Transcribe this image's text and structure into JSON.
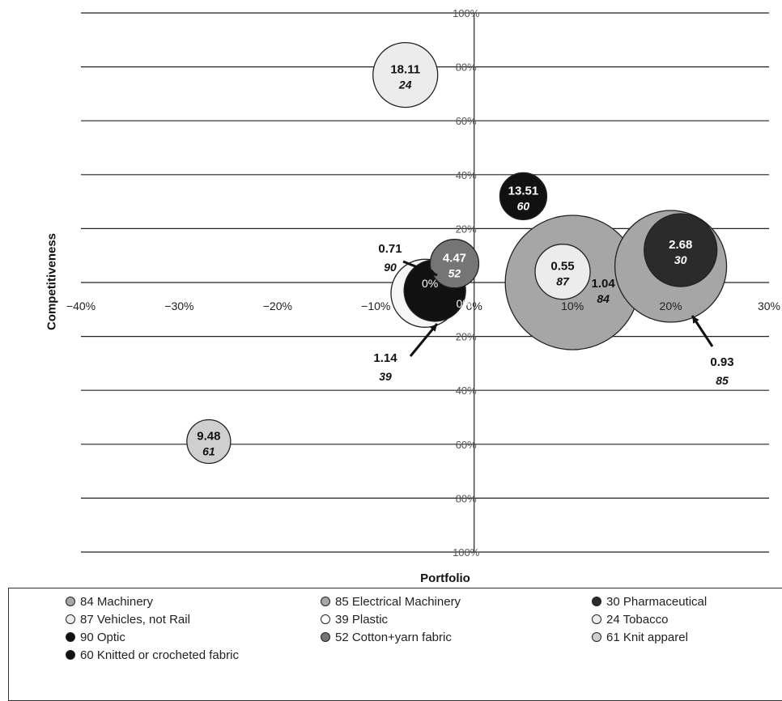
{
  "chart_data": {
    "type": "scatter",
    "subtype": "bubble",
    "xlabel": "Portfolio",
    "ylabel": "Competitiveness",
    "xlim": [
      -0.4,
      0.3
    ],
    "ylim": [
      -1.0,
      1.0
    ],
    "x_ticks": [
      {
        "value": -0.4,
        "label": "−40%"
      },
      {
        "value": -0.3,
        "label": "−30%"
      },
      {
        "value": -0.2,
        "label": "−20%"
      },
      {
        "value": -0.1,
        "label": "−10%"
      },
      {
        "value": 0.0,
        "label": "0%"
      },
      {
        "value": 0.1,
        "label": "10%"
      },
      {
        "value": 0.2,
        "label": "20%"
      },
      {
        "value": 0.3,
        "label": "30%"
      }
    ],
    "y_ticks": [
      {
        "value": 1.0,
        "label": "100%"
      },
      {
        "value": 0.8,
        "label": "80%"
      },
      {
        "value": 0.6,
        "label": "60%"
      },
      {
        "value": 0.4,
        "label": "40%"
      },
      {
        "value": 0.2,
        "label": "20%"
      },
      {
        "value": 0.0,
        "label": "0%"
      },
      {
        "value": -0.2,
        "label": "20%"
      },
      {
        "value": -0.4,
        "label": "40%"
      },
      {
        "value": -0.6,
        "label": "60%"
      },
      {
        "value": -0.8,
        "label": "80%"
      },
      {
        "value": -1.0,
        "label": "100%"
      }
    ],
    "grid": "horizontal",
    "legend_position": "bottom",
    "points": [
      {
        "code": "84",
        "x": 0.1,
        "y": 0.0,
        "size": 1.04,
        "fill": "#a6a6a6",
        "text": "#111111",
        "label_value": "1.04",
        "label_code": "84"
      },
      {
        "code": "85",
        "x": 0.2,
        "y": 0.06,
        "size": 0.93,
        "fill": "#a6a6a6",
        "text": "#111111",
        "label_value": "0.93",
        "label_code": "85"
      },
      {
        "code": "30",
        "x": 0.21,
        "y": 0.12,
        "size": 2.68,
        "fill": "#2b2b2b",
        "text": "#ffffff",
        "label_value": "2.68",
        "label_code": "30"
      },
      {
        "code": "87",
        "x": 0.09,
        "y": 0.04,
        "size": 0.55,
        "fill": "#ececec",
        "text": "#111111",
        "label_value": "0.55",
        "label_code": "87"
      },
      {
        "code": "60",
        "x": 0.05,
        "y": 0.32,
        "size": 13.51,
        "fill": "#111111",
        "text": "#ffffff",
        "label_value": "13.51",
        "label_code": "60"
      },
      {
        "code": "52",
        "x": -0.02,
        "y": 0.07,
        "size": 4.47,
        "fill": "#757575",
        "text": "#ffffff",
        "label_value": "4.47",
        "label_code": "52"
      },
      {
        "code": "39",
        "x": -0.05,
        "y": -0.04,
        "size": 1.14,
        "fill": "#f6f6f6",
        "text": "#111111",
        "label_value": "1.14",
        "label_code": "39"
      },
      {
        "code": "90",
        "x": -0.04,
        "y": -0.03,
        "size": 0.71,
        "fill": "#111111",
        "text": "#ffffff",
        "label_value": "0.71",
        "label_code": "90"
      },
      {
        "code": "24",
        "x": -0.07,
        "y": 0.77,
        "size": 18.11,
        "fill": "#ececec",
        "text": "#111111",
        "label_value": "18.11",
        "label_code": "24"
      },
      {
        "code": "61",
        "x": -0.27,
        "y": -0.59,
        "size": 9.48,
        "fill": "#cfcfcf",
        "text": "#111111",
        "label_value": "9.48",
        "label_code": "61"
      }
    ],
    "annotations": [
      {
        "code": "90",
        "value": "0.71",
        "kind": "callout"
      },
      {
        "code": "39",
        "value": "1.14",
        "kind": "callout"
      },
      {
        "code": "85",
        "value": "0.93",
        "kind": "callout"
      }
    ],
    "bubble_inner_labels": [
      "0%",
      "0%"
    ]
  },
  "legend": {
    "items": [
      {
        "label": "84 Machinery",
        "color": "#a6a6a6"
      },
      {
        "label": "85 Electrical Machinery",
        "color": "#a6a6a6"
      },
      {
        "label": "30 Pharmaceutical",
        "color": "#2b2b2b"
      },
      {
        "label": "87 Vehicles, not Rail",
        "color": "#ececec"
      },
      {
        "label": "39 Plastic",
        "color": "#ffffff"
      },
      {
        "label": "24 Tobacco",
        "color": "#ececec"
      },
      {
        "label": "90 Optic",
        "color": "#111111"
      },
      {
        "label": "52 Cotton+yarn fabric",
        "color": "#757575"
      },
      {
        "label": "61 Knit apparel",
        "color": "#cfcfcf"
      },
      {
        "label": "60  Knitted or crocheted fabric",
        "color": "#111111"
      }
    ]
  }
}
